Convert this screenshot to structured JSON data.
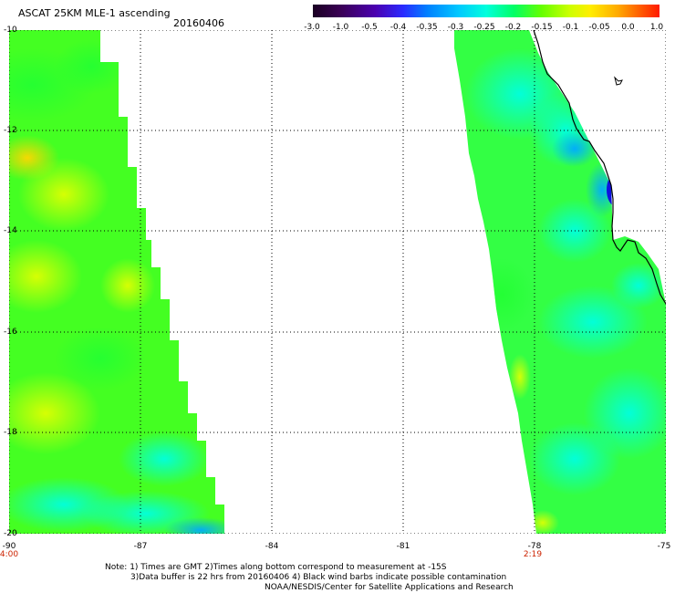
{
  "header": {
    "title": "ASCAT 25KM MLE-1 ascending",
    "date": "20160406"
  },
  "colorbar": {
    "labels": [
      "-3.0",
      "-1.0",
      "-0.5",
      "-0.4",
      "-0.35",
      "-0.3",
      "-0.25",
      "-0.2",
      "-0.15",
      "-0.1",
      "-0.05",
      "0.0",
      "1.0"
    ],
    "colors": [
      "#2a0033",
      "#4b0082",
      "#2020ff",
      "#0066ff",
      "#00a0ff",
      "#00e0ff",
      "#00ff99",
      "#33ff33",
      "#99ff00",
      "#ffff00",
      "#ffaa00",
      "#ff5500",
      "#ff0000"
    ]
  },
  "map": {
    "y_axis": [
      "-10",
      "-12",
      "-14",
      "-16",
      "-18",
      "-20"
    ],
    "x_axis": [
      "-90",
      "-87",
      "-84",
      "-81",
      "-78",
      "-75"
    ],
    "time_labels": [
      "4:00",
      "2:19"
    ]
  },
  "notes": [
    "Note: 1) Times are GMT 2)Times along bottom correspond to measurement at -15S",
    "3)Data buffer is 22 hrs from 20160406 4) Black wind barbs indicate possible contamination",
    "NOAA/NESDIS/Center for Satellite Applications and Research"
  ]
}
